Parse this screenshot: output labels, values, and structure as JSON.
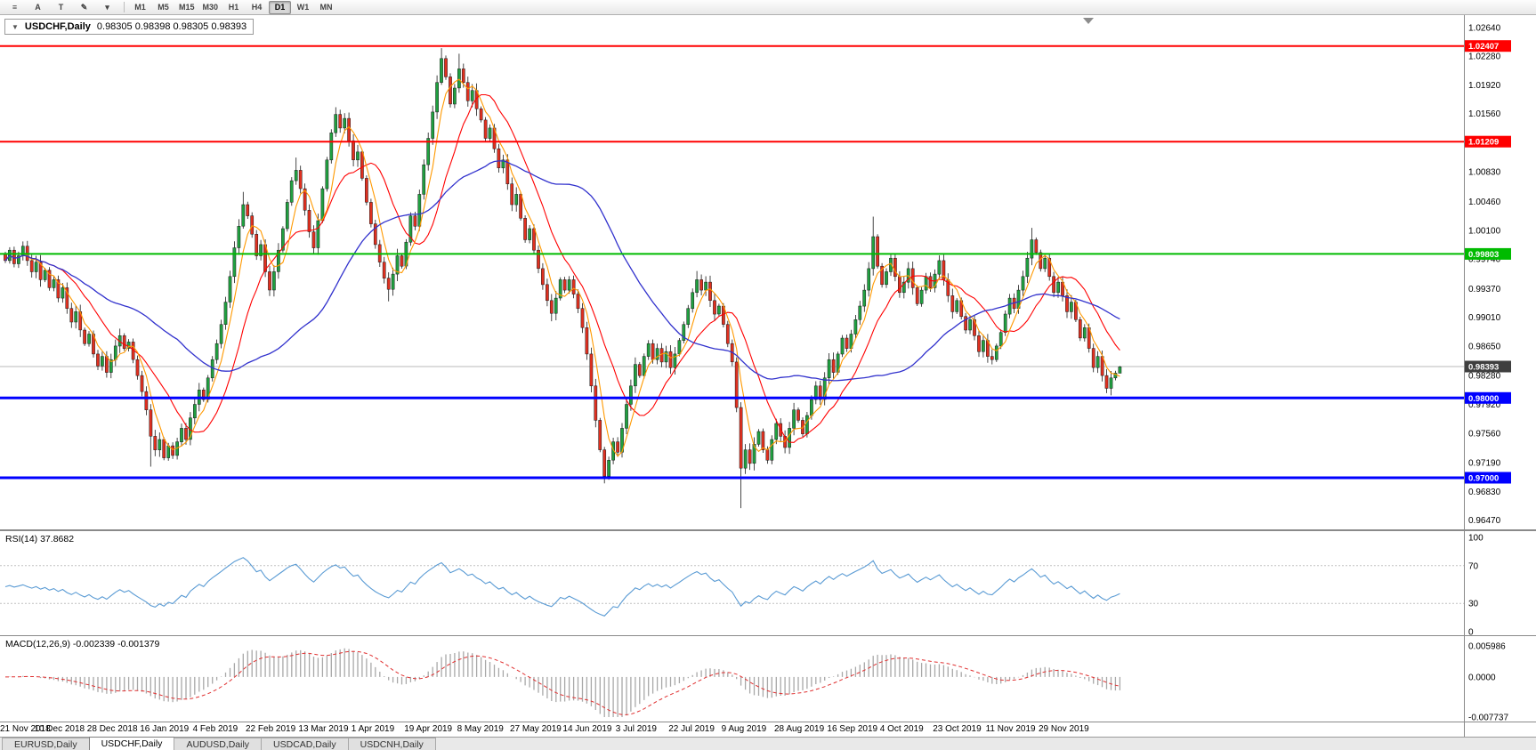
{
  "toolbar": {
    "icons": [
      {
        "id": "window-list-icon",
        "glyph": "≡"
      },
      {
        "id": "arrow-pointer-icon",
        "glyph": "A"
      },
      {
        "id": "text-label-icon",
        "glyph": "T"
      },
      {
        "id": "draw-pencil-icon",
        "glyph": "✎"
      },
      {
        "id": "caret-down-icon",
        "glyph": "▾"
      }
    ],
    "timeframes": [
      "M1",
      "M5",
      "M15",
      "M30",
      "H1",
      "H4",
      "D1",
      "W1",
      "MN"
    ],
    "active_timeframe": "D1"
  },
  "chart": {
    "header": {
      "collapse_icon": "▼",
      "symbol": "USDCHF,Daily",
      "ohlc": "0.98305 0.98398 0.98305 0.98393"
    },
    "price_top": 1.0276,
    "price_bottom": 0.9641,
    "price_axis": [
      "1.02640",
      "1.02280",
      "1.01920",
      "1.01560",
      "1.01190",
      "1.00830",
      "1.00460",
      "1.00100",
      "0.99740",
      "0.99370",
      "0.99010",
      "0.98650",
      "0.98280",
      "0.97920",
      "0.97560",
      "0.97190",
      "0.96830",
      "0.96470"
    ],
    "levels": [
      {
        "price": 1.02407,
        "label": "1.02407",
        "color": "#ff0000",
        "width": 2
      },
      {
        "price": 1.01209,
        "label": "1.01209",
        "color": "#ff0000",
        "width": 2
      },
      {
        "price": 0.99803,
        "label": "0.99803",
        "color": "#00bb00",
        "width": 2
      },
      {
        "price": 0.98,
        "label": "0.98000",
        "color": "#0000ff",
        "width": 3
      },
      {
        "price": 0.97,
        "label": "0.97000",
        "color": "#0000ff",
        "width": 3
      }
    ],
    "current_price": {
      "value": 0.98393,
      "label": "0.98393",
      "box_color": "#3f3f3f"
    },
    "colors": {
      "bull": "#20a040",
      "bear": "#e03020",
      "outline": "#1a1a1a",
      "ma_fast": "#ff9900",
      "ma_mid": "#ff0000",
      "ma_slow": "#3232cd"
    }
  },
  "chart_data": {
    "type": "candlestick",
    "symbol": "USDCHF",
    "timeframe": "Daily",
    "ohlc_display": {
      "open": 0.98305,
      "high": 0.98398,
      "low": 0.98305,
      "close": 0.98393
    },
    "closes": [
      0.9972,
      0.9985,
      0.9968,
      0.9978,
      0.999,
      0.9972,
      0.9958,
      0.997,
      0.9948,
      0.996,
      0.9938,
      0.9948,
      0.9925,
      0.9938,
      0.9912,
      0.9895,
      0.9908,
      0.9885,
      0.9868,
      0.988,
      0.9855,
      0.984,
      0.9852,
      0.9832,
      0.9848,
      0.9865,
      0.9878,
      0.9862,
      0.987,
      0.9848,
      0.9828,
      0.9808,
      0.9785,
      0.9752,
      0.9735,
      0.9748,
      0.9725,
      0.974,
      0.9728,
      0.9745,
      0.9762,
      0.9748,
      0.9775,
      0.9792,
      0.981,
      0.9798,
      0.9825,
      0.9848,
      0.9868,
      0.9892,
      0.992,
      0.9952,
      0.9988,
      1.0015,
      1.0042,
      1.0028,
      1.0005,
      0.9978,
      0.9992,
      0.9958,
      0.9935,
      0.9958,
      0.9985,
      1.0012,
      1.0045,
      1.0072,
      1.0085,
      1.0062,
      1.0035,
      1.0008,
      0.9988,
      1.0022,
      1.0062,
      1.0098,
      1.0132,
      1.0155,
      1.0138,
      1.015,
      1.0122,
      1.0098,
      1.0108,
      1.0075,
      1.0045,
      1.0018,
      0.9992,
      0.997,
      0.995,
      0.9936,
      0.9955,
      0.9978,
      0.9965,
      0.9995,
      1.0028,
      1.0015,
      1.0055,
      1.0092,
      1.0125,
      1.0158,
      1.0195,
      1.0225,
      1.0202,
      1.0168,
      1.0188,
      1.0212,
      1.0195,
      1.0172,
      1.0185,
      1.0162,
      1.0148,
      1.0125,
      1.0138,
      1.0112,
      1.0088,
      1.0098,
      1.0068,
      1.0042,
      1.0055,
      1.0025,
      0.9998,
      1.0012,
      0.9985,
      0.9962,
      0.9942,
      0.9922,
      0.9906,
      0.9925,
      0.9948,
      0.9935,
      0.9948,
      0.993,
      0.9912,
      0.9888,
      0.9855,
      0.9815,
      0.9772,
      0.9735,
      0.9702,
      0.9722,
      0.9745,
      0.9732,
      0.9762,
      0.9792,
      0.9815,
      0.9842,
      0.9828,
      0.9852,
      0.9868,
      0.9848,
      0.9862,
      0.9845,
      0.9858,
      0.9838,
      0.9855,
      0.9872,
      0.9892,
      0.9912,
      0.9932,
      0.9948,
      0.9935,
      0.9945,
      0.9922,
      0.9905,
      0.9915,
      0.9892,
      0.9868,
      0.9845,
      0.9788,
      0.9712,
      0.9735,
      0.9718,
      0.9742,
      0.9758,
      0.9735,
      0.9722,
      0.9748,
      0.9768,
      0.9752,
      0.9738,
      0.9762,
      0.9785,
      0.9772,
      0.9755,
      0.9778,
      0.9798,
      0.9815,
      0.9798,
      0.9825,
      0.9848,
      0.9832,
      0.9855,
      0.9875,
      0.9862,
      0.988,
      0.9898,
      0.9915,
      0.9935,
      0.9962,
      1.0002,
      0.9965,
      0.9942,
      0.9958,
      0.9975,
      0.9952,
      0.9932,
      0.9945,
      0.9962,
      0.9938,
      0.9918,
      0.9935,
      0.9952,
      0.9938,
      0.9955,
      0.9972,
      0.9948,
      0.9928,
      0.9908,
      0.9922,
      0.9902,
      0.9885,
      0.9898,
      0.9878,
      0.9858,
      0.9872,
      0.9852,
      0.9848,
      0.9865,
      0.9882,
      0.9905,
      0.9925,
      0.9912,
      0.9935,
      0.9952,
      0.9975,
      0.9998,
      0.9982,
      0.9962,
      0.9975,
      0.9952,
      0.9932,
      0.9945,
      0.9928,
      0.9908,
      0.992,
      0.9898,
      0.9875,
      0.9888,
      0.9862,
      0.9838,
      0.9852,
      0.9828,
      0.9812,
      0.9825,
      0.9831,
      0.9839
    ],
    "spike_highs": {
      "54": 1.0058,
      "66": 1.0101,
      "75": 1.0164,
      "99": 1.0238,
      "103": 1.0231,
      "157": 0.9959,
      "197": 1.0027,
      "233": 1.0013,
      "253": 0.984
    },
    "spike_lows": {
      "33": 0.9714,
      "87": 0.9921,
      "124": 0.9896,
      "136": 0.9693,
      "167": 0.9662,
      "224": 0.9842,
      "250": 0.9806,
      "253": 0.9831
    },
    "date_labels": [
      "21 Nov 2018",
      "10 Dec 2018",
      "28 Dec 2018",
      "16 Jan 2019",
      "4 Feb 2019",
      "22 Feb 2019",
      "13 Mar 2019",
      "1 Apr 2019",
      "19 Apr 2019",
      "8 May 2019",
      "27 May 2019",
      "14 Jun 2019",
      "3 Jul 2019",
      "22 Jul 2019",
      "9 Aug 2019",
      "28 Aug 2019",
      "16 Sep 2019",
      "4 Oct 2019",
      "23 Oct 2019",
      "11 Nov 2019",
      "29 Nov 2019"
    ],
    "label_step": 12,
    "indicators": [
      {
        "name": "RSI",
        "period": 14,
        "value": 37.8682
      },
      {
        "name": "MACD",
        "fast": 12,
        "slow": 26,
        "signal": 9,
        "values": [
          -0.002339,
          -0.001379
        ]
      }
    ]
  },
  "rsi": {
    "label": "RSI(14) 37.8682",
    "levels": [
      "100",
      "70",
      "30",
      "0"
    ],
    "upper": 70,
    "lower": 30,
    "color": "#5a9bd4"
  },
  "macd": {
    "label": "MACD(12,26,9) -0.002339 -0.001379",
    "axis": [
      "0.005986",
      "0.0000",
      "-0.007737"
    ],
    "max": 0.005986,
    "min": -0.007737
  },
  "tabs": {
    "items": [
      "EURUSD,Daily",
      "USDCHF,Daily",
      "AUDUSD,Daily",
      "USDCAD,Daily",
      "USDCNH,Daily"
    ],
    "active": "USDCHF,Daily"
  }
}
